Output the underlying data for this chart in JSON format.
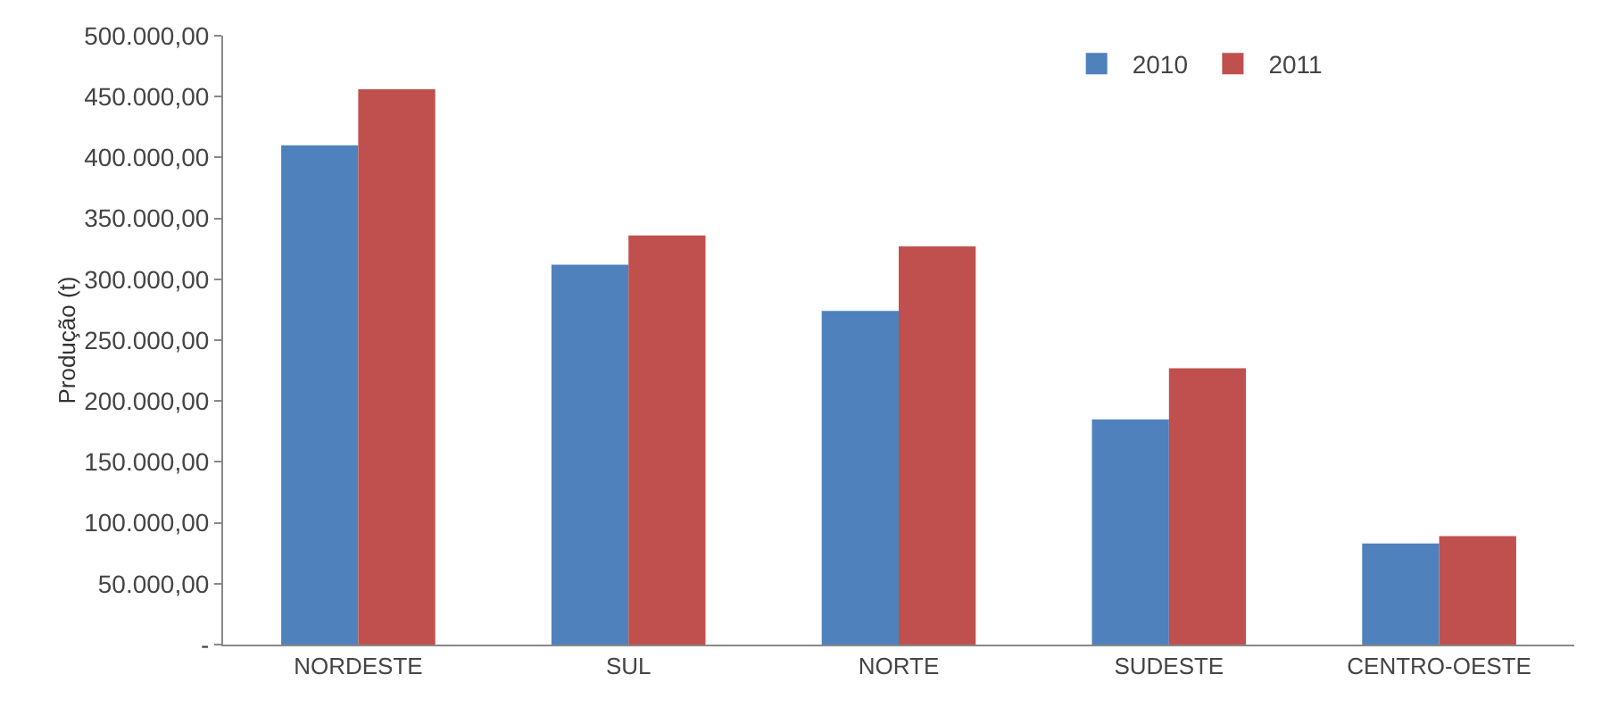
{
  "chart_data": {
    "type": "bar",
    "ylabel": "Produção (t)",
    "categories": [
      "NORDESTE",
      "SUL",
      "NORTE",
      "SUDESTE",
      "CENTRO-OESTE"
    ],
    "series": [
      {
        "name": "2010",
        "color": "#4f81bd",
        "values": [
          410000,
          312000,
          274000,
          185000,
          83000
        ]
      },
      {
        "name": "2011",
        "color": "#c0504d",
        "values": [
          456000,
          336000,
          327000,
          227000,
          89000
        ]
      }
    ],
    "ylim": [
      0,
      500000
    ],
    "yticks": [
      {
        "value": 0,
        "label": "-"
      },
      {
        "value": 50000,
        "label": "50.000,00"
      },
      {
        "value": 100000,
        "label": "100.000,00"
      },
      {
        "value": 150000,
        "label": "150.000,00"
      },
      {
        "value": 200000,
        "label": "200.000,00"
      },
      {
        "value": 250000,
        "label": "250.000,00"
      },
      {
        "value": 300000,
        "label": "300.000,00"
      },
      {
        "value": 350000,
        "label": "350.000,00"
      },
      {
        "value": 400000,
        "label": "400.000,00"
      },
      {
        "value": 450000,
        "label": "450.000,00"
      },
      {
        "value": 500000,
        "label": "500.000,00"
      }
    ],
    "grid": false,
    "legend": "top right"
  }
}
